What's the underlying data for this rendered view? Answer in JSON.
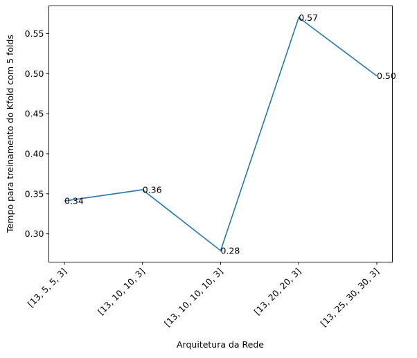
{
  "chart_data": {
    "type": "line",
    "categories": [
      "[13, 5, 5, 3]",
      "[13, 10, 10, 3]",
      "[13, 10, 10, 10, 3]",
      "[13, 20, 20, 3]",
      "[13, 25, 30, 30, 3]"
    ],
    "values": [
      0.341,
      0.355,
      0.279,
      0.57,
      0.497
    ],
    "data_labels": [
      "0.34",
      "0.36",
      "0.28",
      "0.57",
      "0.50"
    ],
    "xlabel": "Arquitetura da Rede",
    "ylabel": "Tempo para treinamento do Kfold com 5 folds",
    "yticks": [
      "0.30",
      "0.35",
      "0.40",
      "0.45",
      "0.50",
      "0.55"
    ],
    "ytick_values": [
      0.3,
      0.35,
      0.4,
      0.45,
      0.5,
      0.55
    ],
    "ylim": [
      0.2647,
      0.5845
    ],
    "grid": false,
    "legend": "none",
    "line_color": "#1f77b4"
  }
}
